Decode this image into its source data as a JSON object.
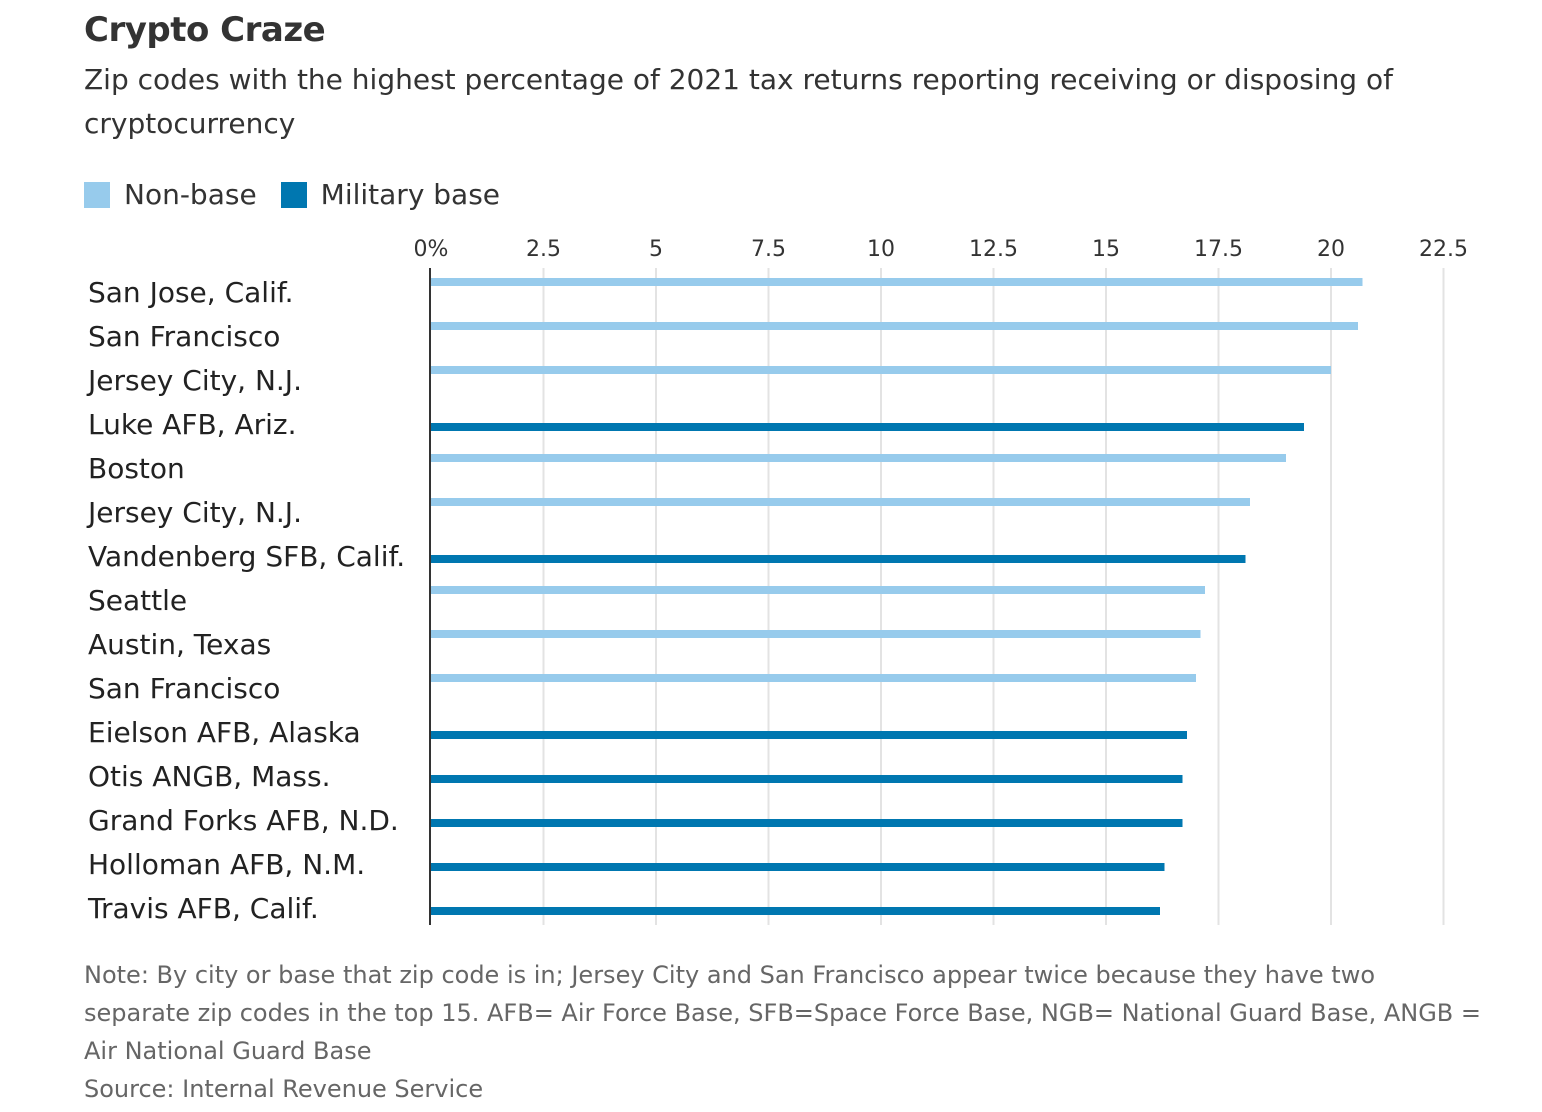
{
  "chart_data": {
    "type": "bar",
    "orientation": "horizontal",
    "title": "Crypto Craze",
    "subtitle": "Zip codes with the highest percentage of 2021 tax returns reporting receiving or disposing of cryptocurrency",
    "legend": [
      {
        "name": "Non-base",
        "color": "#97cbec"
      },
      {
        "name": "Military base",
        "color": "#0077b0"
      }
    ],
    "legend_placement": "top-left",
    "xlim": [
      0,
      22.5
    ],
    "ticks": [
      0,
      2.5,
      5,
      7.5,
      10,
      12.5,
      15,
      17.5,
      20,
      22.5
    ],
    "tick_labels": [
      "0%",
      "2.5",
      "5",
      "7.5",
      "10",
      "12.5",
      "15",
      "17.5",
      "20",
      "22.5"
    ],
    "grid": true,
    "categories": [
      "San Jose, Calif.",
      "San Francisco",
      "Jersey City, N.J.",
      "Luke AFB, Ariz.",
      "Boston",
      "Jersey City, N.J.",
      "Vandenberg SFB, Calif.",
      "Seattle",
      "Austin, Texas",
      "San Francisco",
      "Eielson AFB, Alaska",
      "Otis ANGB, Mass.",
      "Grand Forks AFB, N.D.",
      "Holloman AFB, N.M.",
      "Travis AFB, Calif."
    ],
    "values": [
      20.7,
      20.6,
      20.0,
      19.4,
      19.0,
      18.2,
      18.1,
      17.2,
      17.1,
      17.0,
      16.8,
      16.7,
      16.7,
      16.3,
      16.2
    ],
    "groups": [
      "Non-base",
      "Non-base",
      "Non-base",
      "Military base",
      "Non-base",
      "Non-base",
      "Military base",
      "Non-base",
      "Non-base",
      "Non-base",
      "Military base",
      "Military base",
      "Military base",
      "Military base",
      "Military base"
    ]
  },
  "notes": {
    "note": "Note: By city or base that zip code is in; Jersey City and San Francisco appear twice because they have two separate zip codes in the top 15. AFB= Air Force Base, SFB=Space Force Base, NGB= National Guard Base, ANGB = Air National Guard Base",
    "source": "Source: Internal Revenue Service"
  }
}
